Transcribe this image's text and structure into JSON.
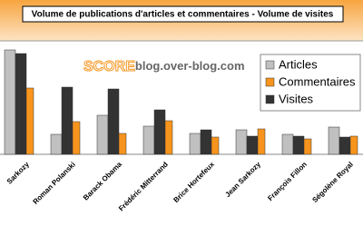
{
  "chart_data": {
    "type": "bar",
    "title": "Volume de publications d'articles et commentaires - Volume de visites",
    "watermark": {
      "brand": "SCORE",
      "domain": "blog.over-blog.com"
    },
    "categories": [
      "Sarkozy",
      "Roman Polanski",
      "Barack Obama",
      "Frédéric Mitterrand",
      "Brice Hortefeux",
      "Jean Sarkozy",
      "François Fillon",
      "Ségolène Royal"
    ],
    "series": [
      {
        "name": "Articles",
        "color": "#c0c0c0",
        "values": [
          115,
          22,
          43,
          31,
          23,
          27,
          22,
          30
        ]
      },
      {
        "name": "Commentaires",
        "color": "#f7941d",
        "values": [
          73,
          36,
          23,
          37,
          19,
          28,
          17,
          20
        ]
      },
      {
        "name": "Visites",
        "color": "#333333",
        "values": [
          111,
          74,
          72,
          49,
          27,
          20,
          20,
          19
        ]
      }
    ],
    "bar_order": [
      0,
      2,
      1
    ],
    "ylim": [
      0,
      125
    ],
    "legend": "top-right"
  }
}
